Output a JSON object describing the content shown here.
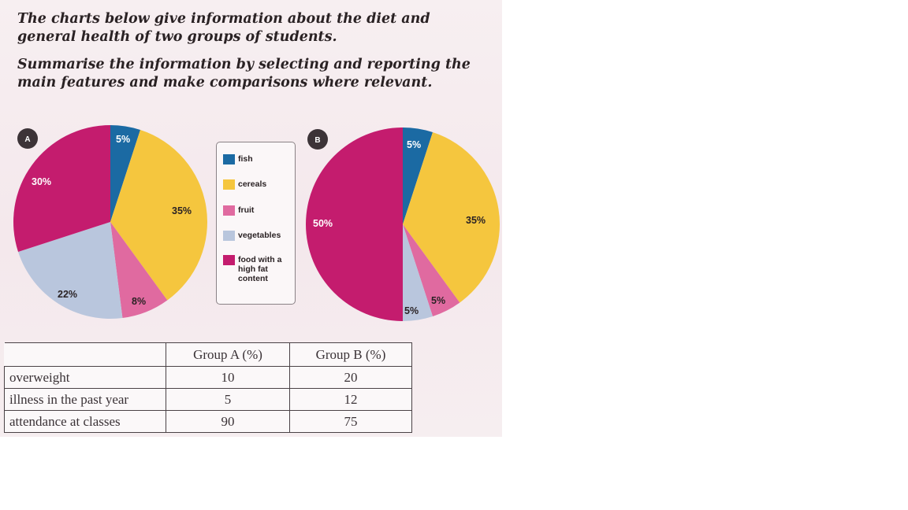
{
  "prompt": {
    "line1": "The charts below give information about the diet and general health of two groups of students.",
    "line2": "Summarise the information by selecting and reporting the main features and make comparisons where relevant."
  },
  "colors": {
    "fish": "#1b6aa3",
    "cereals": "#f5c63e",
    "fruit": "#e06aa0",
    "vegetables": "#b9c6dd",
    "high_fat": "#c41c6e",
    "badge": "#3c3337"
  },
  "chart_data": [
    {
      "type": "pie",
      "title": "A",
      "categories": [
        "fish",
        "cereals",
        "fruit",
        "vegetables",
        "food with a high fat content"
      ],
      "values": [
        5,
        35,
        8,
        22,
        30
      ],
      "labels": [
        "5%",
        "35%",
        "8%",
        "22%",
        "30%"
      ]
    },
    {
      "type": "pie",
      "title": "B",
      "categories": [
        "fish",
        "cereals",
        "fruit",
        "vegetables",
        "food with a high fat content"
      ],
      "values": [
        5,
        35,
        5,
        5,
        50
      ],
      "labels": [
        "5%",
        "35%",
        "5%",
        "5%",
        "50%"
      ]
    },
    {
      "type": "table",
      "columns": [
        "",
        "Group A (%)",
        "Group B (%)"
      ],
      "rows": [
        {
          "label": "overweight",
          "a": "10",
          "b": "20"
        },
        {
          "label": "illness in the past year",
          "a": "5",
          "b": "12"
        },
        {
          "label": "attendance at classes",
          "a": "90",
          "b": "75"
        }
      ]
    }
  ],
  "legend": {
    "items": [
      {
        "key": "fish",
        "label": "fish"
      },
      {
        "key": "cereals",
        "label": "cereals"
      },
      {
        "key": "fruit",
        "label": "fruit"
      },
      {
        "key": "vegetables",
        "label": "vegetables"
      },
      {
        "key": "high_fat",
        "label": "food with a high fat content"
      }
    ]
  }
}
